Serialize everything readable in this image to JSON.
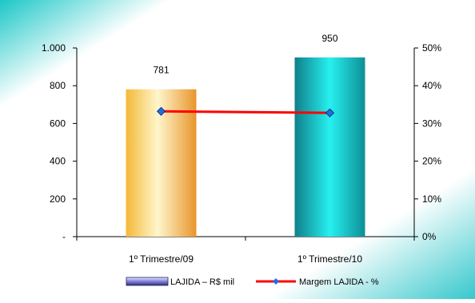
{
  "chart_data": {
    "type": "bar",
    "categories": [
      "1º Trimestre/09",
      "1º Trimestre/10"
    ],
    "series": [
      {
        "name": "LAJIDA – R$ mil",
        "type": "bar",
        "axis": "left",
        "values": [
          781,
          950
        ],
        "data_labels": [
          "781",
          "950"
        ],
        "colors": [
          "#F0A030",
          "#1AB8C0"
        ]
      },
      {
        "name": "Margem LAJIDA - %",
        "type": "line",
        "axis": "right",
        "values": [
          33.2,
          32.8
        ],
        "color": "#FF0000",
        "marker_color": "#1E6FE0"
      }
    ],
    "y_left": {
      "ylim": [
        0,
        1000
      ],
      "ticks": [
        0,
        200,
        400,
        600,
        800,
        1000
      ],
      "tick_labels": [
        "-",
        "200",
        "400",
        "600",
        "800",
        "1.000"
      ]
    },
    "y_right": {
      "ylim": [
        0,
        50
      ],
      "ticks": [
        0,
        10,
        20,
        30,
        40,
        50
      ],
      "tick_labels": [
        "0%",
        "10%",
        "20%",
        "30%",
        "40%",
        "50%"
      ]
    },
    "grid": false,
    "legend": "bottom"
  }
}
